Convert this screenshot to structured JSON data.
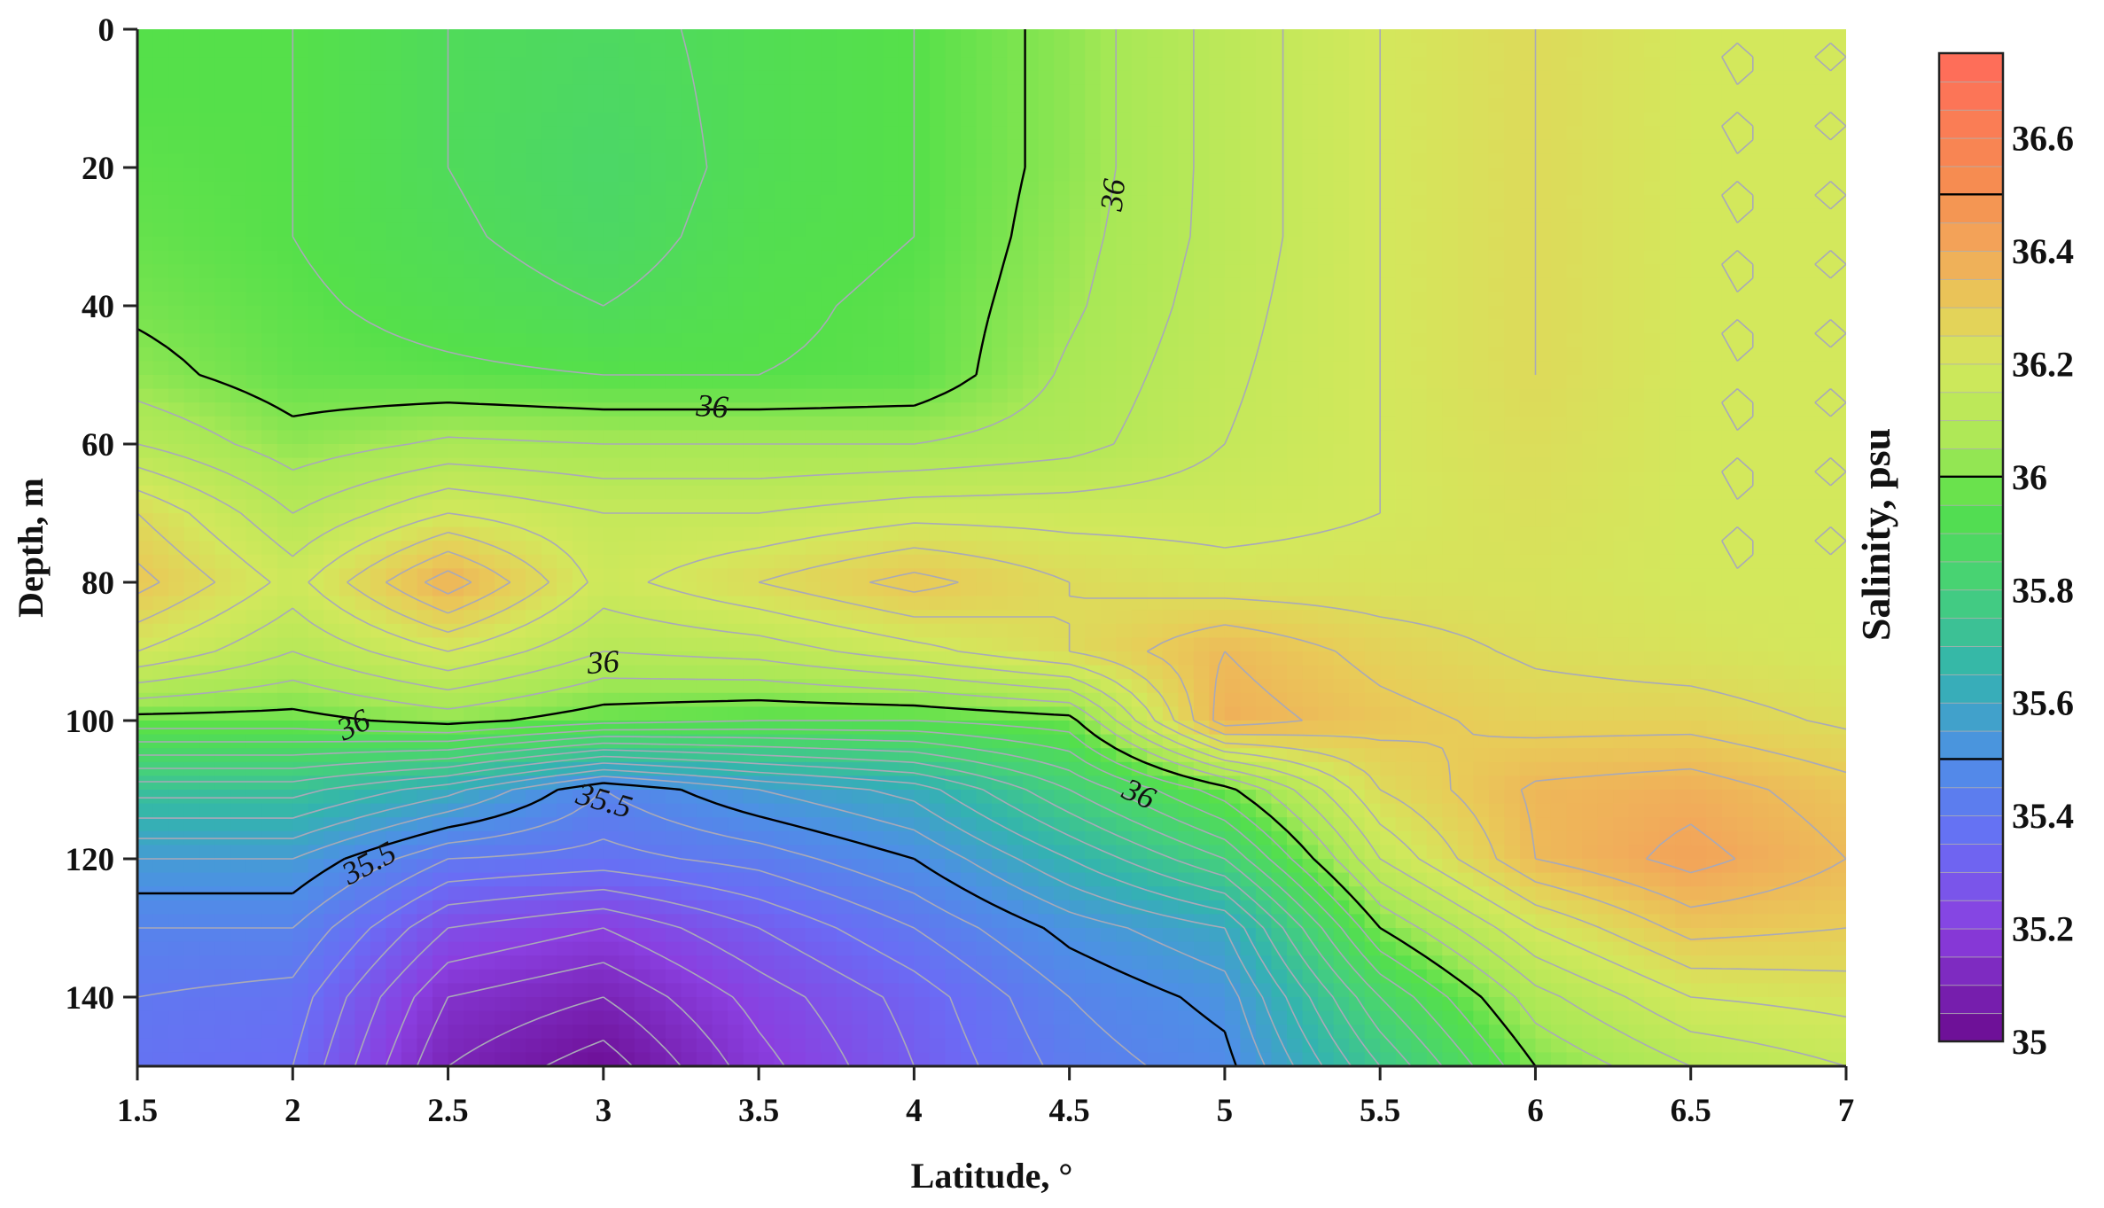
{
  "chart_data": {
    "type": "heatmap",
    "title": "",
    "xlabel": "Latitude, °",
    "ylabel": "Depth, m",
    "colorbar_label": "Salinity, psu",
    "xlim": [
      1.5,
      7
    ],
    "ylim": [
      0,
      150
    ],
    "y_inverted": true,
    "x_ticks": [
      1.5,
      2,
      2.5,
      3,
      3.5,
      4,
      4.5,
      5,
      5.5,
      6,
      6.5,
      7
    ],
    "x_tick_labels": [
      "1.5",
      "2",
      "2.5",
      "3",
      "3.5",
      "4",
      "4.5",
      "5",
      "5.5",
      "6",
      "6.5",
      "7"
    ],
    "y_ticks": [
      0,
      20,
      40,
      60,
      80,
      100,
      120,
      140
    ],
    "y_tick_labels": [
      "0",
      "20",
      "40",
      "60",
      "80",
      "100",
      "120",
      "140"
    ],
    "colorbar_range": [
      35,
      36.75
    ],
    "colorbar_ticks": [
      35,
      35.2,
      35.4,
      35.6,
      35.8,
      36,
      36.2,
      36.4,
      36.6
    ],
    "colorbar_tick_labels": [
      "35",
      "35.2",
      "35.4",
      "35.6",
      "35.8",
      "36",
      "36.2",
      "36.4",
      "36.6"
    ],
    "colorbar_highlight_levels": [
      35.5,
      36,
      36.5
    ],
    "colormap": [
      [
        35.0,
        "#6a0a8e"
      ],
      [
        35.2,
        "#8a3fe0"
      ],
      [
        35.35,
        "#6a6cf5"
      ],
      [
        35.5,
        "#4e8fe6"
      ],
      [
        35.65,
        "#33b3b0"
      ],
      [
        35.8,
        "#45d07a"
      ],
      [
        35.95,
        "#55e04a"
      ],
      [
        36.05,
        "#a8e856"
      ],
      [
        36.2,
        "#d3e85c"
      ],
      [
        36.3,
        "#e8cc58"
      ],
      [
        36.4,
        "#f2a85a"
      ],
      [
        36.5,
        "#f59050"
      ],
      [
        36.75,
        "#ff6a5a"
      ]
    ],
    "grid_x": [
      1.5,
      2,
      2.5,
      3,
      3.5,
      4,
      4.5,
      5,
      5.5,
      6,
      6.5,
      7
    ],
    "grid_y": [
      0,
      10,
      20,
      30,
      40,
      50,
      60,
      70,
      80,
      90,
      100,
      110,
      120,
      130,
      140,
      150
    ],
    "values": [
      [
        35.95,
        35.95,
        35.9,
        35.88,
        35.92,
        35.95,
        36.02,
        36.12,
        36.2,
        36.25,
        36.2,
        36.2
      ],
      [
        35.95,
        35.95,
        35.9,
        35.87,
        35.92,
        35.95,
        36.02,
        36.12,
        36.2,
        36.25,
        36.2,
        36.2
      ],
      [
        35.96,
        35.95,
        35.9,
        35.86,
        35.92,
        35.95,
        36.02,
        36.12,
        36.2,
        36.25,
        36.2,
        36.2
      ],
      [
        35.97,
        35.95,
        35.91,
        35.87,
        35.93,
        35.95,
        36.03,
        36.12,
        36.2,
        36.25,
        36.2,
        36.2
      ],
      [
        35.99,
        35.96,
        35.93,
        35.9,
        35.94,
        35.96,
        36.04,
        36.13,
        36.2,
        36.25,
        36.2,
        36.2
      ],
      [
        36.02,
        35.97,
        35.96,
        35.95,
        35.95,
        35.96,
        36.06,
        36.14,
        36.2,
        36.25,
        36.2,
        36.2
      ],
      [
        36.1,
        36.02,
        36.06,
        36.05,
        36.05,
        36.05,
        36.08,
        36.15,
        36.2,
        36.24,
        36.2,
        36.2
      ],
      [
        36.25,
        36.1,
        36.2,
        36.15,
        36.15,
        36.18,
        36.18,
        36.18,
        36.2,
        36.23,
        36.2,
        36.2
      ],
      [
        36.32,
        36.18,
        36.38,
        36.18,
        36.25,
        36.32,
        36.25,
        36.22,
        36.22,
        36.22,
        36.2,
        36.2
      ],
      [
        36.2,
        36.1,
        36.2,
        36.1,
        36.12,
        36.18,
        36.25,
        36.35,
        36.28,
        36.24,
        36.22,
        36.2
      ],
      [
        35.98,
        35.98,
        36.02,
        35.97,
        35.95,
        35.95,
        35.98,
        36.38,
        36.32,
        36.28,
        36.28,
        36.24
      ],
      [
        35.72,
        35.72,
        35.62,
        35.45,
        35.55,
        35.62,
        35.8,
        35.98,
        36.25,
        36.36,
        36.38,
        36.32
      ],
      [
        35.55,
        35.55,
        35.4,
        35.38,
        35.42,
        35.5,
        35.65,
        35.8,
        36.15,
        36.35,
        36.42,
        36.35
      ],
      [
        35.45,
        35.45,
        35.25,
        35.2,
        35.3,
        35.4,
        35.52,
        35.6,
        36.0,
        36.2,
        36.32,
        36.3
      ],
      [
        35.4,
        35.38,
        35.15,
        35.1,
        35.22,
        35.32,
        35.45,
        35.52,
        35.85,
        36.08,
        36.2,
        36.22
      ],
      [
        35.38,
        35.35,
        35.1,
        35.02,
        35.18,
        35.3,
        35.42,
        35.48,
        35.75,
        36.0,
        36.1,
        36.15
      ]
    ],
    "contour_labels": [
      {
        "text": "36",
        "x": 4.65,
        "y": 24,
        "angle": -84
      },
      {
        "text": "36",
        "x": 3.35,
        "y": 55,
        "angle": 4
      },
      {
        "text": "36",
        "x": 3.0,
        "y": 92,
        "angle": -4
      },
      {
        "text": "36",
        "x": 2.2,
        "y": 101,
        "angle": -26
      },
      {
        "text": "36",
        "x": 4.72,
        "y": 111,
        "angle": 24
      },
      {
        "text": "35.5",
        "x": 3.0,
        "y": 112,
        "angle": 16
      },
      {
        "text": "35.5",
        "x": 2.25,
        "y": 121,
        "angle": -28
      }
    ]
  }
}
